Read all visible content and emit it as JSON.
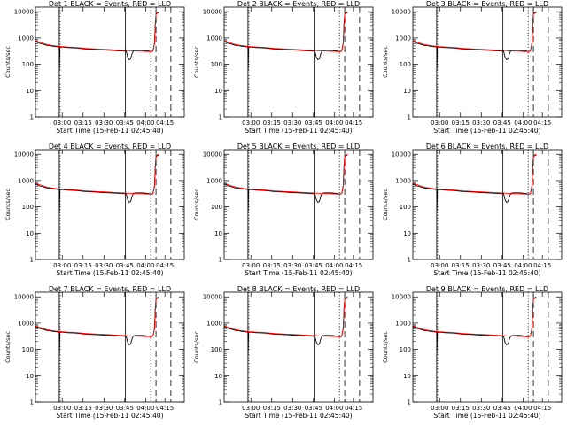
{
  "chart_data": {
    "type": "line",
    "title_template": "Det {n} BLACK = Events, RED = LLD",
    "xlabel": "Start Time (15-Feb-11 02:45:40)",
    "ylabel": "Counts/sec",
    "xlim": [
      0,
      100
    ],
    "ylim": [
      1,
      15000
    ],
    "yscale": "log",
    "x_ticks": [
      {
        "x": 18,
        "label": "03:00"
      },
      {
        "x": 32,
        "label": "03:15"
      },
      {
        "x": 46,
        "label": "03:30"
      },
      {
        "x": 60,
        "label": "03:45"
      },
      {
        "x": 74,
        "label": "04:00"
      },
      {
        "x": 87,
        "label": "04:15"
      }
    ],
    "y_ticks": [
      {
        "v": 1,
        "label": "1"
      },
      {
        "v": 10,
        "label": "10"
      },
      {
        "v": 100,
        "label": "100"
      },
      {
        "v": 1000,
        "label": "1000"
      },
      {
        "v": 10000,
        "label": "10000"
      }
    ],
    "colors": {
      "events": "#000000",
      "lld": "#ff0000"
    },
    "series": [
      {
        "name": "Events",
        "color": "#000000",
        "x": [
          0,
          1,
          2,
          4,
          6,
          8,
          10,
          12,
          14,
          15,
          16,
          16.1,
          16.5,
          18,
          22,
          26,
          30,
          34,
          38,
          42,
          46,
          50,
          54,
          58,
          60,
          61,
          62,
          63,
          64,
          65,
          66,
          68,
          70,
          72,
          74,
          76,
          78,
          79,
          80,
          80.5,
          81,
          82,
          83
        ],
        "y": [
          750,
          700,
          640,
          600,
          560,
          520,
          510,
          480,
          470,
          460,
          455,
          60,
          450,
          450,
          430,
          420,
          400,
          380,
          370,
          360,
          350,
          340,
          330,
          320,
          315,
          310,
          180,
          150,
          160,
          260,
          330,
          340,
          340,
          340,
          330,
          320,
          300,
          320,
          600,
          3000,
          8000,
          9000,
          9500
        ]
      },
      {
        "name": "LLD",
        "color": "#ff0000",
        "x": [
          0,
          2,
          4,
          6,
          8,
          10,
          12,
          14,
          16,
          18,
          22,
          26,
          30,
          34,
          38,
          42,
          46,
          50,
          54,
          58,
          62,
          66,
          70,
          74,
          78,
          79,
          80,
          80.5,
          81,
          82,
          83
        ],
        "y": [
          800,
          720,
          660,
          600,
          560,
          530,
          510,
          490,
          480,
          470,
          450,
          440,
          420,
          400,
          390,
          380,
          370,
          360,
          350,
          340,
          330,
          320,
          315,
          310,
          300,
          330,
          650,
          3200,
          8500,
          9500,
          10000
        ]
      }
    ],
    "vertical_markers": [
      {
        "x": 16,
        "style": "solid"
      },
      {
        "x": 16.6,
        "style": "dotted"
      },
      {
        "x": 60.5,
        "style": "solid"
      },
      {
        "x": 77.5,
        "style": "dotted"
      },
      {
        "x": 81,
        "style": "dashed"
      },
      {
        "x": 91,
        "style": "dashed"
      }
    ],
    "panels": [
      {
        "det": "1"
      },
      {
        "det": "2"
      },
      {
        "det": "3"
      },
      {
        "det": "4"
      },
      {
        "det": "5"
      },
      {
        "det": "6"
      },
      {
        "det": "7"
      },
      {
        "det": "8"
      },
      {
        "det": "9"
      }
    ]
  }
}
